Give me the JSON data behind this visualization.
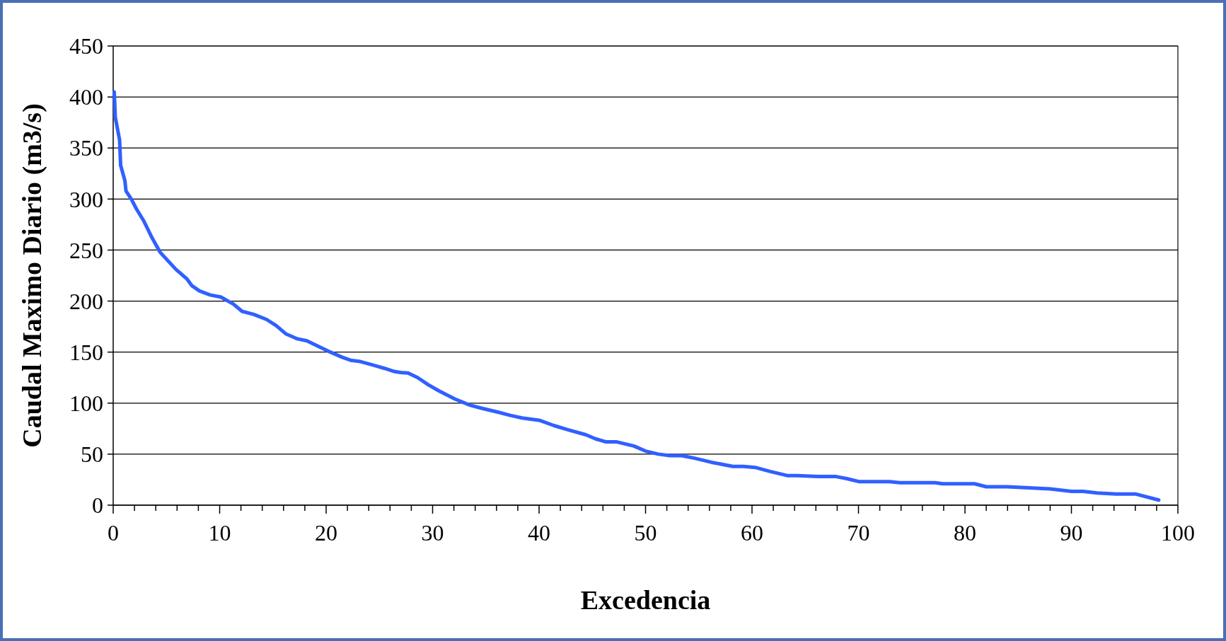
{
  "chart_data": {
    "type": "line",
    "xlabel": "Excedencia",
    "ylabel": "Caudal Maximo Diario (m3/s)",
    "xlim": [
      0,
      100
    ],
    "ylim": [
      0,
      450
    ],
    "yticks": [
      0,
      50,
      100,
      150,
      200,
      250,
      300,
      350,
      400,
      450
    ],
    "xticks": [
      0,
      {
        "value": 2,
        "label": null
      },
      {
        "value": 4,
        "label": null
      },
      {
        "value": 6,
        "label": null
      },
      {
        "value": 8,
        "label": null
      },
      10,
      {
        "value": 12,
        "label": null
      },
      {
        "value": 14,
        "label": null
      },
      {
        "value": 16,
        "label": null
      },
      {
        "value": 18,
        "label": null
      },
      20,
      {
        "value": 22,
        "label": null
      },
      {
        "value": 24,
        "label": null
      },
      {
        "value": 26,
        "label": null
      },
      {
        "value": 28,
        "label": null
      },
      30,
      {
        "value": 32,
        "label": null
      },
      {
        "value": 34,
        "label": null
      },
      {
        "value": 36,
        "label": null
      },
      {
        "value": 38,
        "label": null
      },
      40,
      {
        "value": 42,
        "label": null
      },
      {
        "value": 44,
        "label": null
      },
      {
        "value": 46,
        "label": null
      },
      {
        "value": 48,
        "label": null
      },
      50,
      {
        "value": 52,
        "label": null
      },
      {
        "value": 54,
        "label": null
      },
      {
        "value": 56,
        "label": null
      },
      {
        "value": 58,
        "label": null
      },
      60,
      {
        "value": 62,
        "label": null
      },
      {
        "value": 64,
        "label": null
      },
      {
        "value": 66,
        "label": null
      },
      {
        "value": 68,
        "label": null
      },
      70,
      {
        "value": 72,
        "label": null
      },
      {
        "value": 74,
        "label": null
      },
      {
        "value": 76,
        "label": null
      },
      {
        "value": 78,
        "label": null
      },
      80,
      {
        "value": 82,
        "label": null
      },
      {
        "value": 84,
        "label": null
      },
      {
        "value": 86,
        "label": null
      },
      {
        "value": 88,
        "label": null
      },
      90,
      {
        "value": 92,
        "label": null
      },
      {
        "value": 94,
        "label": null
      },
      {
        "value": 96,
        "label": null
      },
      {
        "value": 98,
        "label": null
      },
      100
    ],
    "grid": "y",
    "marker": "none",
    "line_style": "solid",
    "series": [
      {
        "color": "#3060ff",
        "x": [
          0.1,
          0.2,
          0.6,
          0.7,
          1.1,
          1.2,
          1.7,
          2.2,
          2.9,
          3.6,
          4.4,
          5.1,
          5.9,
          6.9,
          7.4,
          8.1,
          9.1,
          10.1,
          11.3,
          12.1,
          13.2,
          14.4,
          15.3,
          16.2,
          17.3,
          18.2,
          19.4,
          20.4,
          21.5,
          22.3,
          23.1,
          24.5,
          25.5,
          26.4,
          27.0,
          27.7,
          28.6,
          29.6,
          30.6,
          32.1,
          33.5,
          34.6,
          36.2,
          37.3,
          38.4,
          40.1,
          41.4,
          42.7,
          44.4,
          45.3,
          46.3,
          47.3,
          48.9,
          50,
          51.2,
          52.3,
          53.4,
          54.6,
          56.2,
          58.2,
          59.2,
          60.3,
          61.7,
          63.3,
          64.3,
          66.2,
          67.9,
          68.9,
          70.1,
          72.9,
          73.9,
          77.2,
          77.9,
          80.9,
          82,
          84,
          86,
          88,
          90,
          91.1,
          92.4,
          94.2,
          96,
          98.2
        ],
        "values": [
          405,
          380,
          358,
          333,
          318,
          308,
          300,
          290,
          278,
          263,
          248,
          240,
          231,
          222,
          215,
          210,
          206,
          204,
          197,
          190,
          187,
          182,
          176,
          168,
          163,
          161,
          155,
          150,
          145,
          142,
          141,
          137,
          134,
          131,
          130,
          129.5,
          125,
          118,
          112,
          104,
          98,
          95,
          91,
          88,
          85.5,
          83,
          78,
          74,
          69,
          65,
          62,
          62,
          58,
          53,
          50,
          48.5,
          48.5,
          46,
          42,
          38,
          38,
          37,
          33,
          29,
          29,
          28,
          28,
          26,
          23,
          23,
          22,
          22,
          21,
          21,
          18,
          18,
          17,
          16,
          13.5,
          13.5,
          12,
          11,
          11,
          5
        ]
      }
    ]
  }
}
